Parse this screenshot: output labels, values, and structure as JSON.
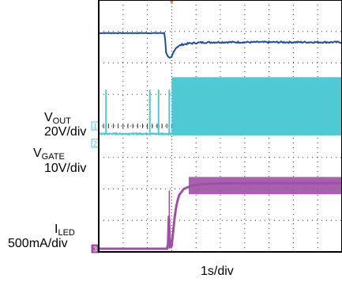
{
  "chart_data": {
    "type": "line",
    "x_unit": "s",
    "xlim": [
      -1.5,
      3.5
    ],
    "ylim": [
      -4,
      4
    ],
    "grid": true,
    "grid_divisions": {
      "x": 10,
      "y": 8
    },
    "trigger_time": 0,
    "series": [
      {
        "name": "",
        "color": "#1f4fa3",
        "x": [
          -1.5,
          -0.15,
          -0.13,
          -0.12,
          -0.08,
          -0.03,
          0.0,
          0.05,
          0.1,
          0.2,
          0.35,
          0.6,
          1.0,
          1.5,
          2.0,
          3.5
        ],
        "y": [
          2.95,
          2.95,
          2.7,
          2.35,
          2.2,
          2.15,
          2.2,
          2.4,
          2.5,
          2.58,
          2.62,
          2.65,
          2.66,
          2.66,
          2.66,
          2.66
        ]
      },
      {
        "name": "VGATE",
        "color": "#4fc9d3",
        "baseline_div": -0.25,
        "pulse_times": [
          -1.35,
          -0.45,
          -0.27,
          0.1,
          -0.05
        ],
        "pulse_height_div": 1.4,
        "switching_start": 0.0,
        "switching_band_div": [
          -0.3,
          1.55
        ]
      },
      {
        "name": "ILED",
        "color": "#a04fa6",
        "x": [
          -1.5,
          -0.08,
          -0.06,
          -0.05,
          -0.04,
          -0.02,
          0.0,
          0.02,
          0.06,
          0.1,
          0.15,
          0.25,
          0.4,
          0.6,
          0.9,
          1.3,
          3.5
        ],
        "y": [
          -3.9,
          -3.9,
          -3.0,
          -2.35,
          -3.6,
          -3.88,
          -3.8,
          -3.5,
          -2.9,
          -2.5,
          -2.2,
          -2.0,
          -1.9,
          -1.85,
          -1.83,
          -1.82,
          -1.82
        ],
        "spike": {
          "x": -0.05,
          "y": -2.3
        }
      }
    ],
    "channel_labels": [
      {
        "main": "V",
        "sub": "OUT",
        "scale": "20V/div",
        "marker": "1"
      },
      {
        "main": "V",
        "sub": "GATE",
        "scale": "10V/div",
        "marker": "2"
      },
      {
        "main": "I",
        "sub": "LED",
        "scale": "500mA/div",
        "marker": "3"
      }
    ],
    "time_scale": "1s/div"
  }
}
